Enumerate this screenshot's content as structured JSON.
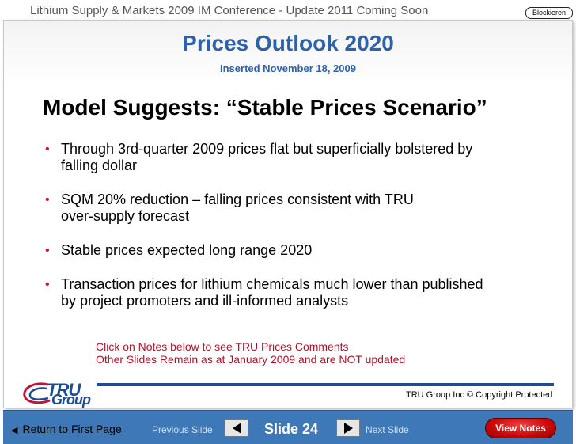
{
  "header": {
    "conference_title": "Lithium Supply & Markets 2009 IM Conference - Update 2011 Coming Soon",
    "block_button_label": "Blockieren"
  },
  "slide": {
    "title": "Prices Outlook 2020",
    "subtitle": "Inserted November 18, 2009",
    "heading": "Model Suggests: “Stable Prices Scenario”",
    "bullets": [
      "Through 3rd-quarter 2009 prices flat but superficially bolstered by\nfalling dollar",
      "SQM 20% reduction – falling prices consistent with TRU\nover-supply forecast",
      "Stable prices expected long range 2020",
      "Transaction prices for lithium chemicals much lower than published\nby project promoters and ill-informed analysts"
    ],
    "notes_line_1": "Click on Notes below to see TRU Prices Comments",
    "notes_line_2": "Other Slides Remain as at January 2009 and are NOT updated",
    "logo_text_top": "TRU",
    "logo_text_bottom": "Group",
    "copyright": "TRU Group Inc  © Copyright Protected"
  },
  "nav": {
    "first_page": "Return to First Page",
    "previous": "Previous Slide",
    "slide_number": "Slide 24",
    "next": "Next Slide",
    "view_notes": "View Notes"
  },
  "colors": {
    "title_blue": "#2e62a8",
    "bullet_red": "#c0143c",
    "notes_red": "#b0122a",
    "nav_blue": "#3f78b6",
    "view_notes_red": "#c80808"
  },
  "icons": {
    "first_page": "arrow-left-icon",
    "previous": "triangle-left-icon",
    "next": "triangle-right-icon",
    "logo": "tru-group-logo"
  }
}
